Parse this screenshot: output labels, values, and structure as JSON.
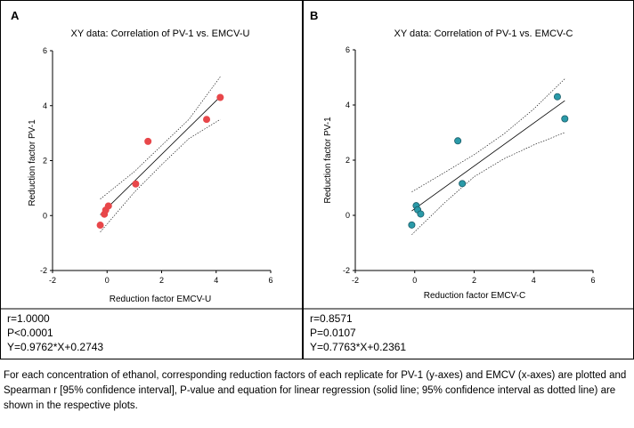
{
  "caption": "For each concentration of ethanol, corresponding reduction factors of each replicate for PV-1 (y-axes) and EMCV (x-axes) are plotted and Spearman r [95% confidence interval], P-value and equation for linear regression (solid line; 95% confidence interval as dotted line) are shown in the respective plots.",
  "colors": {
    "panel_a_points": "#e8474a",
    "panel_b_points": "#2a9aa8",
    "panel_b_point_stroke": "#1a5c68"
  },
  "chart_data": [
    {
      "type": "scatter",
      "panel_label": "A",
      "title": "XY data: Correlation of PV-1 vs. EMCV-U",
      "xlabel": "Reduction factor EMCV-U",
      "ylabel": "Reduction factor PV-1",
      "xlim": [
        -2,
        6
      ],
      "ylim": [
        -2,
        6
      ],
      "xticks": [
        -2,
        0,
        2,
        4,
        6
      ],
      "yticks": [
        -2,
        0,
        2,
        4,
        6
      ],
      "xtick_labels": [
        "-2",
        "0",
        "2",
        "4",
        "6"
      ],
      "ytick_labels": [
        "-2",
        "0",
        "2",
        "4",
        "6"
      ],
      "points": [
        {
          "x": -0.25,
          "y": -0.35
        },
        {
          "x": -0.1,
          "y": 0.05
        },
        {
          "x": -0.05,
          "y": 0.2
        },
        {
          "x": 0.05,
          "y": 0.35
        },
        {
          "x": 1.05,
          "y": 1.15
        },
        {
          "x": 1.5,
          "y": 2.7
        },
        {
          "x": 3.65,
          "y": 3.5
        },
        {
          "x": 4.15,
          "y": 4.3
        }
      ],
      "regression": {
        "slope": 0.9762,
        "intercept": 0.2743
      },
      "confidence_band": {
        "x": [
          -0.25,
          1.0,
          2.0,
          3.0,
          4.15
        ],
        "lower": [
          -0.6,
          0.85,
          1.85,
          2.8,
          3.5
        ],
        "upper": [
          0.6,
          1.6,
          2.55,
          3.5,
          5.05
        ]
      },
      "grid": false,
      "stats": [
        "r=1.0000",
        "P<0.0001",
        "Y=0.9762*X+0.2743"
      ]
    },
    {
      "type": "scatter",
      "panel_label": "B",
      "title": "XY data: Correlation of PV-1 vs. EMCV-C",
      "xlabel": "Reduction factor EMCV-C",
      "ylabel": "Reduction factor PV-1",
      "xlim": [
        -2,
        6
      ],
      "ylim": [
        -2,
        6
      ],
      "xticks": [
        -2,
        0,
        2,
        4,
        6
      ],
      "yticks": [
        -2,
        0,
        2,
        4,
        6
      ],
      "xtick_labels": [
        "-2",
        "0",
        "2",
        "4",
        "6"
      ],
      "ytick_labels": [
        "-2",
        "0",
        "2",
        "4",
        "6"
      ],
      "points": [
        {
          "x": -0.1,
          "y": -0.35
        },
        {
          "x": 0.05,
          "y": 0.35
        },
        {
          "x": 0.1,
          "y": 0.2
        },
        {
          "x": 0.2,
          "y": 0.05
        },
        {
          "x": 1.45,
          "y": 2.7
        },
        {
          "x": 1.6,
          "y": 1.15
        },
        {
          "x": 4.8,
          "y": 4.3
        },
        {
          "x": 5.05,
          "y": 3.5
        }
      ],
      "regression": {
        "slope": 0.7763,
        "intercept": 0.2361
      },
      "confidence_band": {
        "x": [
          -0.1,
          1.0,
          2.0,
          3.0,
          4.0,
          5.05
        ],
        "lower": [
          -0.7,
          0.45,
          1.4,
          2.05,
          2.55,
          3.0
        ],
        "upper": [
          0.85,
          1.55,
          2.2,
          2.95,
          3.85,
          4.95
        ]
      },
      "grid": false,
      "stats": [
        "r=0.8571",
        "P=0.0107",
        "Y=0.7763*X+0.2361"
      ]
    }
  ]
}
